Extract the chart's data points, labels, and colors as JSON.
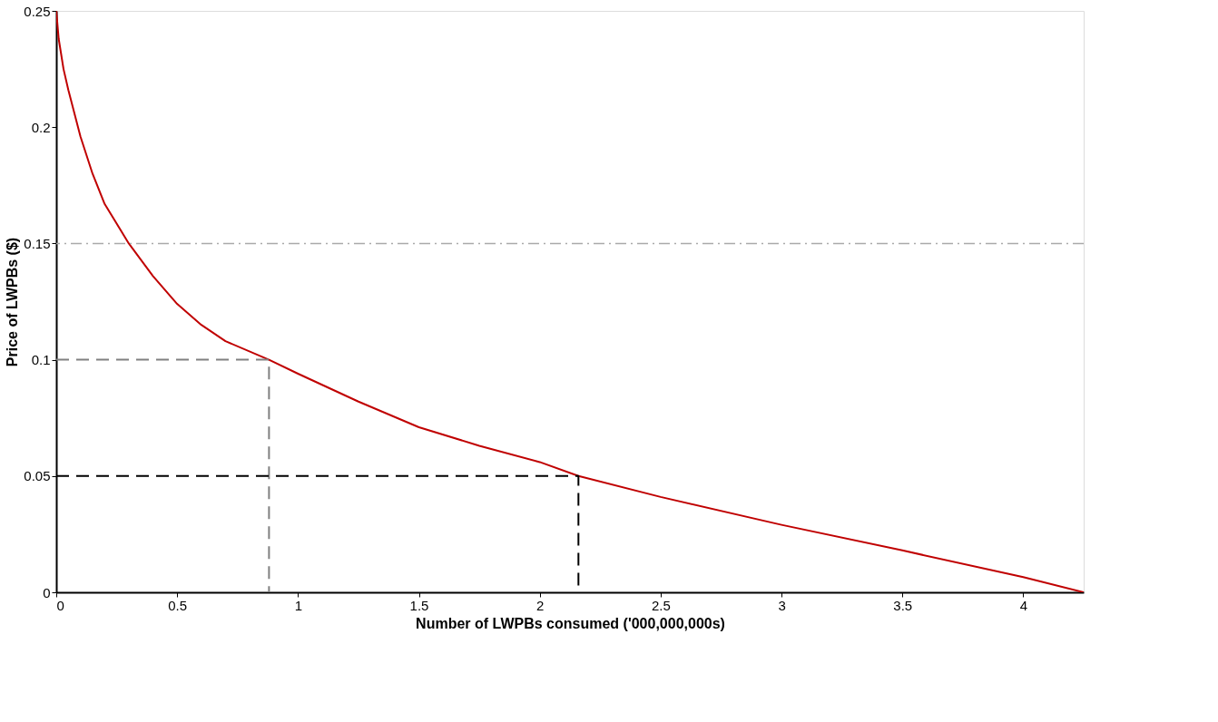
{
  "chart_data": {
    "type": "line",
    "xlabel": "Number of LWPBs consumed ('000,000,000s)",
    "ylabel": "Price of LWPBs ($)",
    "xlim": [
      0,
      4.25
    ],
    "ylim": [
      0,
      0.25
    ],
    "xticks": [
      0,
      0.5,
      1,
      1.5,
      2,
      2.5,
      3,
      3.5,
      4
    ],
    "yticks": [
      0,
      0.05,
      0.1,
      0.15,
      0.2,
      0.25
    ],
    "grid": false,
    "marker": "none",
    "series": [
      {
        "color": "#c00000",
        "line_style": "solid",
        "x": [
          0,
          0.01,
          0.03,
          0.05,
          0.1,
          0.15,
          0.2,
          0.3,
          0.4,
          0.5,
          0.6,
          0.7,
          0.88,
          1.0,
          1.25,
          1.5,
          1.75,
          2.0,
          2.16,
          2.5,
          3.0,
          3.5,
          4.0,
          4.25
        ],
        "values": [
          0.25,
          0.238,
          0.225,
          0.216,
          0.196,
          0.18,
          0.167,
          0.15,
          0.136,
          0.124,
          0.115,
          0.108,
          0.1,
          0.094,
          0.082,
          0.071,
          0.063,
          0.056,
          0.05,
          0.041,
          0.029,
          0.018,
          0.0065,
          0
        ]
      },
      {
        "color": "#808080",
        "line_style": "dashed",
        "x": [
          0,
          0.88,
          0.88
        ],
        "values": [
          0.1,
          0.1,
          0
        ]
      },
      {
        "color": "#000000",
        "line_style": "dashed",
        "x": [
          0,
          2.16,
          2.16
        ],
        "values": [
          0.05,
          0.05,
          0
        ]
      }
    ],
    "ref_lines": [
      {
        "axis": "y",
        "value": 0.15,
        "color": "#aaaaaa",
        "line_style": "dashdot"
      }
    ]
  }
}
